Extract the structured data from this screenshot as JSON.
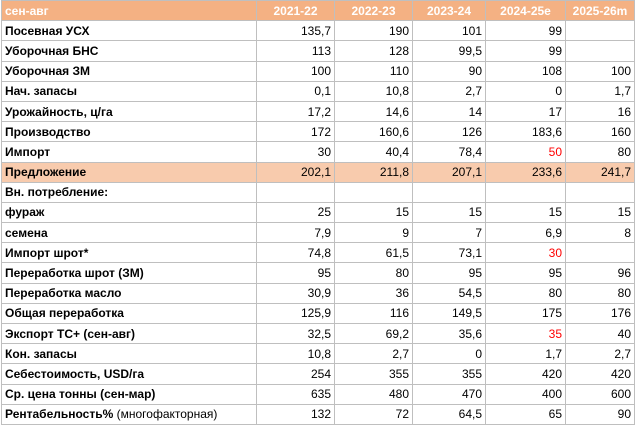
{
  "header": {
    "label": "сен-авг",
    "years": [
      "2021-22",
      "2022-23",
      "2023-24",
      "2024-25e",
      "2025-26m"
    ]
  },
  "rows": [
    {
      "label": "Посевная УСХ",
      "values": [
        "135,7",
        "190",
        "101",
        "99",
        ""
      ]
    },
    {
      "label": "Уборочная БНС",
      "values": [
        "113",
        "128",
        "99,5",
        "99",
        ""
      ]
    },
    {
      "label": "Уборочная ЗМ",
      "values": [
        "100",
        "110",
        "90",
        "108",
        "100"
      ]
    },
    {
      "label": "Нач. запасы",
      "values": [
        "0,1",
        "10,8",
        "2,7",
        "0",
        "1,7"
      ]
    },
    {
      "label": "Урожайность, ц/га",
      "values": [
        "17,2",
        "14,6",
        "14",
        "17",
        "16"
      ]
    },
    {
      "label": "Производство",
      "values": [
        "172",
        "160,6",
        "126",
        "183,6",
        "160"
      ]
    },
    {
      "label": "Импорт",
      "values": [
        "30",
        "40,4",
        "78,4",
        "50",
        "80"
      ]
    },
    {
      "label": "Предложение",
      "values": [
        "202,1",
        "211,8",
        "207,1",
        "233,6",
        "241,7"
      ]
    },
    {
      "label": "Вн. потребление:",
      "values": [
        "",
        "",
        "",
        "",
        ""
      ]
    },
    {
      "label": "фураж",
      "values": [
        "25",
        "15",
        "15",
        "15",
        "15"
      ]
    },
    {
      "label": "семена",
      "values": [
        "7,9",
        "9",
        "7",
        "6,9",
        "8"
      ]
    },
    {
      "label": "Импорт шрот*",
      "values": [
        "74,8",
        "61,5",
        "73,1",
        "30",
        ""
      ]
    },
    {
      "label": "Переработка шрот (ЗМ)",
      "values": [
        "95",
        "80",
        "95",
        "95",
        "96"
      ]
    },
    {
      "label": "Переработка масло",
      "values": [
        "30,9",
        "36",
        "54,5",
        "80",
        "80"
      ]
    },
    {
      "label": "Общая переработка",
      "values": [
        "125,9",
        "116",
        "149,5",
        "175",
        "176"
      ]
    },
    {
      "label": "Экспорт ТС+ (сен-авг)",
      "values": [
        "32,5",
        "69,2",
        "35,6",
        "35",
        "40"
      ]
    },
    {
      "label": "Кон. запасы",
      "values": [
        "10,8",
        "2,7",
        "0",
        "1,7",
        "2,7"
      ]
    },
    {
      "label": "Себестоимость, USD/га",
      "values": [
        "254",
        "355",
        "355",
        "420",
        "420"
      ]
    },
    {
      "label": "Ср. цена тонны (сен-мар)",
      "values": [
        "635",
        "480",
        "470",
        "400",
        "600"
      ]
    },
    {
      "label": "Рентабельность%",
      "suffix": " (многофакторная)",
      "values": [
        "132",
        "72",
        "64,5",
        "65",
        "90"
      ]
    }
  ],
  "styles": {
    "header_bg": "#f4b183",
    "highlight_bg": "#f8cbad",
    "header_text": "#ffffff",
    "red_text": "#ff0000",
    "grid_line": "#bfbfbf"
  }
}
